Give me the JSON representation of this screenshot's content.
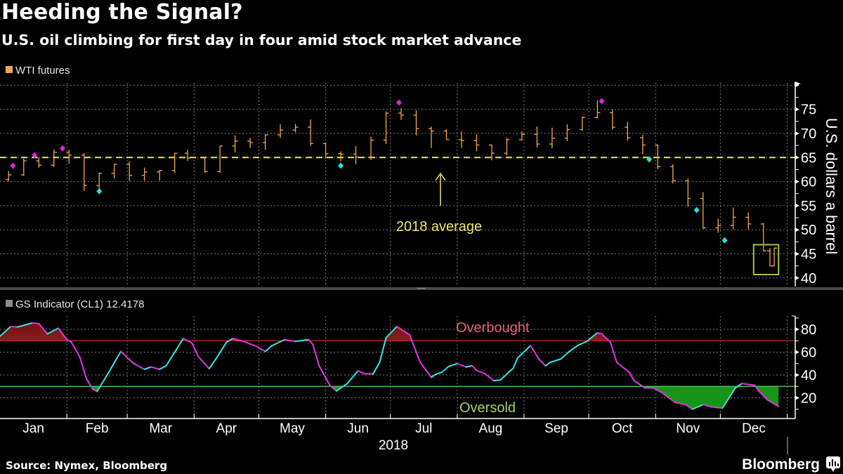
{
  "header": {
    "title": "Heeding the Signal?",
    "subtitle": "U.S. oil climbing for first day in four amid stock market advance"
  },
  "chart_data": [
    {
      "type": "ohlc",
      "legend": "WTI futures",
      "ylabel": "U.S. dollars a barrel",
      "ylim": [
        40,
        80
      ],
      "yticks": [
        "40",
        "45",
        "50",
        "55",
        "60",
        "65",
        "70",
        "75"
      ],
      "grid": true,
      "legend_position": "top-left",
      "colors": {
        "bars": "#f2a84a",
        "average": "#e8e86a",
        "overbought_signal": "#e020e0",
        "oversold_signal": "#20e0e0",
        "highlight_box": "#9cc63e"
      },
      "average": {
        "value": 65,
        "label": "2018 average"
      },
      "highlight": {
        "from": "2018-12-21",
        "to": "2018-12-28",
        "low": 40.7,
        "high": 46.9
      },
      "bars": [
        [
          "2018-01-05",
          60.4,
          62.2,
          60.1,
          61.4
        ],
        [
          "2018-01-12",
          61.4,
          64.8,
          61.2,
          64.3
        ],
        [
          "2018-01-19",
          64.3,
          64.9,
          62.9,
          63.4
        ],
        [
          "2018-01-26",
          63.4,
          66.7,
          63.0,
          66.1
        ],
        [
          "2018-02-02",
          66.1,
          66.6,
          63.7,
          65.5
        ],
        [
          "2018-02-09",
          65.5,
          65.9,
          58.1,
          59.2
        ],
        [
          "2018-02-16",
          59.2,
          61.9,
          58.4,
          61.7
        ],
        [
          "2018-02-23",
          61.7,
          63.7,
          60.6,
          63.6
        ],
        [
          "2018-03-02",
          63.6,
          64.2,
          60.1,
          61.3
        ],
        [
          "2018-03-09",
          61.3,
          62.9,
          60.2,
          62.0
        ],
        [
          "2018-03-16",
          62.0,
          62.4,
          60.2,
          62.3
        ],
        [
          "2018-03-23",
          62.3,
          66.0,
          61.8,
          65.9
        ],
        [
          "2018-03-29",
          65.9,
          66.6,
          64.3,
          64.9
        ],
        [
          "2018-04-06",
          64.9,
          65.2,
          61.8,
          62.1
        ],
        [
          "2018-04-13",
          62.1,
          67.4,
          61.8,
          67.4
        ],
        [
          "2018-04-20",
          67.4,
          69.6,
          66.1,
          68.4
        ],
        [
          "2018-04-27",
          68.4,
          69.1,
          67.0,
          68.1
        ],
        [
          "2018-05-04",
          68.1,
          69.8,
          66.6,
          69.7
        ],
        [
          "2018-05-11",
          69.7,
          71.9,
          69.1,
          70.7
        ],
        [
          "2018-05-18",
          70.7,
          72.0,
          70.2,
          71.3
        ],
        [
          "2018-05-25",
          71.3,
          72.9,
          67.4,
          67.9
        ],
        [
          "2018-06-01",
          67.9,
          68.1,
          64.7,
          65.8
        ],
        [
          "2018-06-08",
          65.8,
          66.3,
          64.2,
          65.7
        ],
        [
          "2018-06-15",
          65.7,
          67.4,
          63.6,
          65.1
        ],
        [
          "2018-06-22",
          65.1,
          69.3,
          64.5,
          68.6
        ],
        [
          "2018-06-29",
          68.6,
          74.5,
          67.8,
          74.2
        ],
        [
          "2018-07-06",
          74.2,
          75.3,
          72.8,
          73.8
        ],
        [
          "2018-07-13",
          73.8,
          74.8,
          69.6,
          71.0
        ],
        [
          "2018-07-20",
          71.0,
          71.4,
          67.0,
          70.5
        ],
        [
          "2018-07-27",
          70.5,
          70.9,
          68.7,
          68.7
        ],
        [
          "2018-08-03",
          68.7,
          70.4,
          67.0,
          68.5
        ],
        [
          "2018-08-10",
          68.5,
          69.8,
          66.3,
          67.6
        ],
        [
          "2018-08-17",
          67.6,
          67.7,
          64.4,
          65.9
        ],
        [
          "2018-08-24",
          65.9,
          69.1,
          65.4,
          68.7
        ],
        [
          "2018-08-31",
          68.7,
          70.4,
          68.5,
          69.8
        ],
        [
          "2018-09-07",
          69.8,
          71.4,
          67.1,
          67.8
        ],
        [
          "2018-09-14",
          67.8,
          71.2,
          66.9,
          69.0
        ],
        [
          "2018-09-21",
          69.0,
          71.9,
          68.4,
          70.8
        ],
        [
          "2018-09-28",
          70.8,
          73.5,
          70.6,
          73.3
        ],
        [
          "2018-10-05",
          73.3,
          76.9,
          73.1,
          74.3
        ],
        [
          "2018-10-12",
          74.3,
          75.0,
          70.8,
          71.3
        ],
        [
          "2018-10-19",
          71.3,
          72.4,
          68.5,
          69.1
        ],
        [
          "2018-10-26",
          69.1,
          69.7,
          65.7,
          67.6
        ],
        [
          "2018-11-02",
          67.6,
          67.7,
          62.6,
          63.1
        ],
        [
          "2018-11-09",
          63.1,
          63.6,
          59.6,
          60.2
        ],
        [
          "2018-11-16",
          60.2,
          60.6,
          54.8,
          56.5
        ],
        [
          "2018-11-23",
          56.5,
          57.8,
          50.2,
          50.4
        ],
        [
          "2018-11-30",
          50.4,
          52.3,
          49.4,
          50.9
        ],
        [
          "2018-12-07",
          50.9,
          54.6,
          50.1,
          52.6
        ],
        [
          "2018-12-14",
          52.6,
          53.6,
          50.1,
          51.2
        ],
        [
          "2018-12-21",
          51.2,
          51.4,
          45.5,
          45.6
        ],
        [
          "2018-12-24",
          45.6,
          46.2,
          42.4,
          42.5
        ],
        [
          "2018-12-26",
          42.5,
          46.3,
          42.4,
          46.2
        ]
      ],
      "signals": {
        "overbought": [
          [
            "2018-01-07",
            63.3
          ],
          [
            "2018-01-17",
            65.5
          ],
          [
            "2018-01-30",
            66.9
          ],
          [
            "2018-07-05",
            76.4
          ],
          [
            "2018-10-07",
            76.7
          ]
        ],
        "oversold": [
          [
            "2018-02-16",
            58.0
          ],
          [
            "2018-06-08",
            63.3
          ],
          [
            "2018-10-29",
            64.6
          ],
          [
            "2018-11-20",
            54.1
          ],
          [
            "2018-12-03",
            47.8
          ]
        ]
      }
    },
    {
      "type": "line",
      "legend": "GS Indicator (CL1)",
      "last_value": "12.4178",
      "ylim": [
        2,
        92
      ],
      "yticks": [
        "20",
        "40",
        "60",
        "80"
      ],
      "grid": true,
      "legend_position": "top-left",
      "colors": {
        "rising": "#33e6e6",
        "falling": "#e633e6",
        "overbought_line": "#c0282a",
        "oversold_line": "#4ee04e",
        "overbought_fill": "#8e1c1c",
        "oversold_fill": "#1f8a1f",
        "overbought_label": "#e06470",
        "oversold_label": "#a6d468",
        "legend_swatch": "#8c8c8c"
      },
      "thresholds": {
        "overbought": {
          "value": 70,
          "label": "Overbought"
        },
        "oversold": {
          "value": 30,
          "label": "Oversold"
        }
      },
      "points": [
        [
          "2018-01-01",
          74
        ],
        [
          "2018-01-06",
          82.5
        ],
        [
          "2018-01-09",
          82
        ],
        [
          "2018-01-16",
          85.6
        ],
        [
          "2018-01-19",
          85
        ],
        [
          "2018-01-23",
          76
        ],
        [
          "2018-01-28",
          81
        ],
        [
          "2018-02-01",
          71
        ],
        [
          "2018-02-03",
          69
        ],
        [
          "2018-02-07",
          56
        ],
        [
          "2018-02-10",
          37
        ],
        [
          "2018-02-13",
          27.5
        ],
        [
          "2018-02-15",
          25.6
        ],
        [
          "2018-02-20",
          41
        ],
        [
          "2018-02-26",
          60.6
        ],
        [
          "2018-03-04",
          50
        ],
        [
          "2018-03-09",
          45
        ],
        [
          "2018-03-12",
          47
        ],
        [
          "2018-03-16",
          45
        ],
        [
          "2018-03-19",
          48
        ],
        [
          "2018-03-27",
          72
        ],
        [
          "2018-03-31",
          68
        ],
        [
          "2018-04-03",
          56
        ],
        [
          "2018-04-08",
          45.6
        ],
        [
          "2018-04-11",
          53.7
        ],
        [
          "2018-04-16",
          68.7
        ],
        [
          "2018-04-19",
          72
        ],
        [
          "2018-04-24",
          69.4
        ],
        [
          "2018-04-30",
          65
        ],
        [
          "2018-05-04",
          60.6
        ],
        [
          "2018-05-07",
          65.6
        ],
        [
          "2018-05-13",
          71
        ],
        [
          "2018-05-18",
          69.4
        ],
        [
          "2018-05-24",
          71
        ],
        [
          "2018-05-26",
          67
        ],
        [
          "2018-05-29",
          48
        ],
        [
          "2018-06-03",
          30.6
        ],
        [
          "2018-06-06",
          26
        ],
        [
          "2018-06-11",
          32.5
        ],
        [
          "2018-06-16",
          43.7
        ],
        [
          "2018-06-19",
          41
        ],
        [
          "2018-06-23",
          41
        ],
        [
          "2018-06-26",
          51
        ],
        [
          "2018-06-29",
          72.5
        ],
        [
          "2018-07-04",
          82.5
        ],
        [
          "2018-07-10",
          75
        ],
        [
          "2018-07-13",
          60
        ],
        [
          "2018-07-15",
          50.6
        ],
        [
          "2018-07-20",
          38
        ],
        [
          "2018-07-22",
          40.6
        ],
        [
          "2018-07-25",
          42.5
        ],
        [
          "2018-07-28",
          47.5
        ],
        [
          "2018-08-01",
          50
        ],
        [
          "2018-08-05",
          47
        ],
        [
          "2018-08-08",
          48
        ],
        [
          "2018-08-10",
          44
        ],
        [
          "2018-08-14",
          41
        ],
        [
          "2018-08-18",
          35
        ],
        [
          "2018-08-21",
          35.6
        ],
        [
          "2018-08-27",
          46
        ],
        [
          "2018-08-29",
          55
        ],
        [
          "2018-09-04",
          65.6
        ],
        [
          "2018-09-08",
          53.7
        ],
        [
          "2018-09-11",
          48
        ],
        [
          "2018-09-13",
          51
        ],
        [
          "2018-09-18",
          54
        ],
        [
          "2018-09-22",
          60.6
        ],
        [
          "2018-09-26",
          66
        ],
        [
          "2018-09-30",
          69.4
        ],
        [
          "2018-10-05",
          77
        ],
        [
          "2018-10-07",
          76
        ],
        [
          "2018-10-11",
          68.7
        ],
        [
          "2018-10-14",
          51
        ],
        [
          "2018-10-20",
          42
        ],
        [
          "2018-10-22",
          35
        ],
        [
          "2018-10-27",
          28.7
        ],
        [
          "2018-10-31",
          28.7
        ],
        [
          "2018-11-04",
          24.4
        ],
        [
          "2018-11-10",
          16
        ],
        [
          "2018-11-15",
          14
        ],
        [
          "2018-11-18",
          10
        ],
        [
          "2018-11-23",
          14
        ],
        [
          "2018-11-27",
          12
        ],
        [
          "2018-12-02",
          11
        ],
        [
          "2018-12-08",
          28.7
        ],
        [
          "2018-12-11",
          32.5
        ],
        [
          "2018-12-17",
          31
        ],
        [
          "2018-12-19",
          25.6
        ],
        [
          "2018-12-23",
          18
        ],
        [
          "2018-12-28",
          12.4178
        ]
      ]
    }
  ],
  "xaxis": {
    "months": [
      "Jan",
      "Feb",
      "Mar",
      "Apr",
      "May",
      "Jun",
      "Jul",
      "Aug",
      "Sep",
      "Oct",
      "Nov",
      "Dec"
    ],
    "year": "2018"
  },
  "footer": {
    "source": "Source: Nymex, Bloomberg",
    "brand": "Bloomberg"
  }
}
